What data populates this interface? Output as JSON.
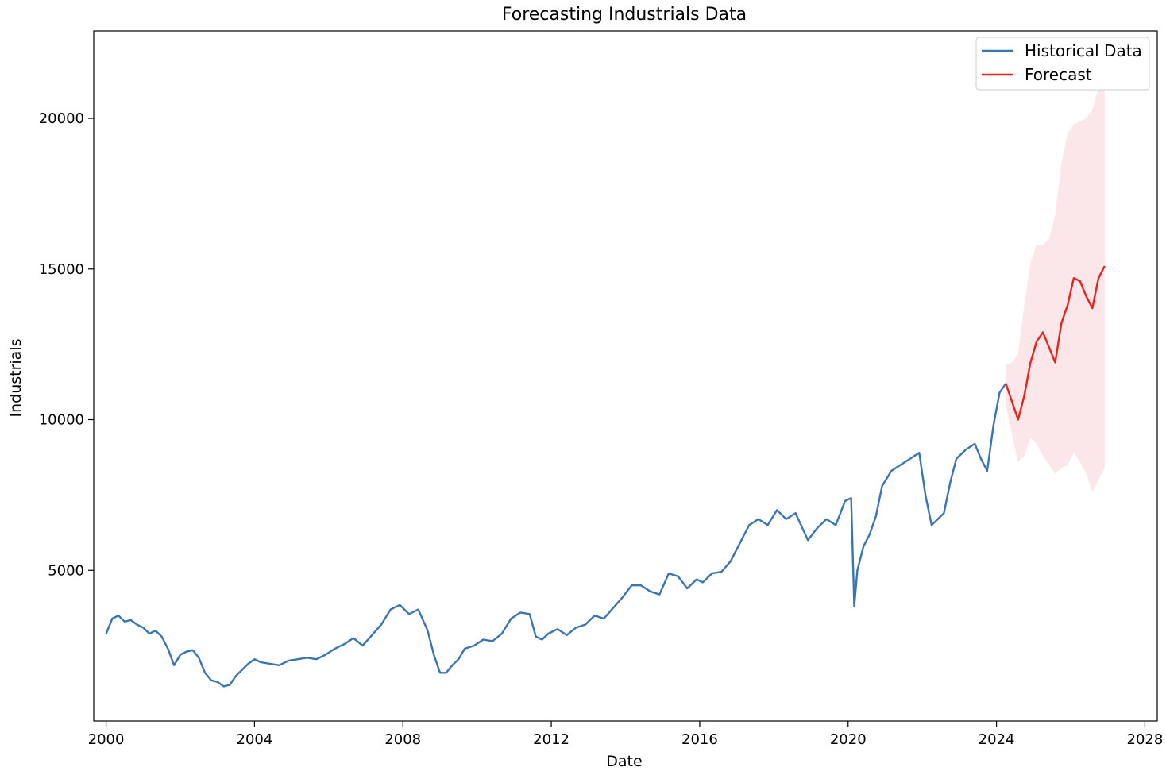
{
  "chart_data": {
    "type": "line",
    "title": "Forecasting Industrials Data",
    "xlabel": "Date",
    "ylabel": "Industrials",
    "xlim": [
      "1999-09-01",
      "2028-05-01"
    ],
    "ylim": [
      0,
      22900
    ],
    "x_ticks": [
      "2000",
      "2004",
      "2008",
      "2012",
      "2016",
      "2020",
      "2024",
      "2028"
    ],
    "y_ticks": [
      5000,
      10000,
      15000,
      20000
    ],
    "grid": false,
    "legend_position": "upper right",
    "series": [
      {
        "name": "Historical Data",
        "color": "#3a75b0",
        "x": [
          "2000-01",
          "2000-03",
          "2000-05",
          "2000-07",
          "2000-09",
          "2000-11",
          "2001-01",
          "2001-03",
          "2001-05",
          "2001-07",
          "2001-09",
          "2001-11",
          "2002-01",
          "2002-03",
          "2002-05",
          "2002-07",
          "2002-09",
          "2002-11",
          "2003-01",
          "2003-03",
          "2003-05",
          "2003-07",
          "2003-09",
          "2003-11",
          "2004-01",
          "2004-03",
          "2004-06",
          "2004-09",
          "2004-12",
          "2005-03",
          "2005-06",
          "2005-09",
          "2005-12",
          "2006-03",
          "2006-06",
          "2006-09",
          "2006-12",
          "2007-03",
          "2007-06",
          "2007-09",
          "2007-12",
          "2008-03",
          "2008-06",
          "2008-09",
          "2008-11",
          "2009-01",
          "2009-03",
          "2009-05",
          "2009-07",
          "2009-09",
          "2009-12",
          "2010-03",
          "2010-06",
          "2010-09",
          "2010-12",
          "2011-03",
          "2011-06",
          "2011-08",
          "2011-10",
          "2011-12",
          "2012-03",
          "2012-06",
          "2012-09",
          "2012-12",
          "2013-03",
          "2013-06",
          "2013-09",
          "2013-12",
          "2014-03",
          "2014-06",
          "2014-09",
          "2014-12",
          "2015-03",
          "2015-06",
          "2015-09",
          "2015-12",
          "2016-02",
          "2016-05",
          "2016-08",
          "2016-11",
          "2017-02",
          "2017-05",
          "2017-08",
          "2017-11",
          "2018-02",
          "2018-05",
          "2018-08",
          "2018-12",
          "2019-03",
          "2019-06",
          "2019-09",
          "2019-12",
          "2020-02",
          "2020-03",
          "2020-04",
          "2020-06",
          "2020-08",
          "2020-10",
          "2020-12",
          "2021-03",
          "2021-06",
          "2021-09",
          "2021-12",
          "2022-02",
          "2022-04",
          "2022-06",
          "2022-08",
          "2022-10",
          "2022-12",
          "2023-03",
          "2023-06",
          "2023-08",
          "2023-10",
          "2023-12",
          "2024-02",
          "2024-04"
        ],
        "y": [
          2900,
          3400,
          3500,
          3300,
          3350,
          3200,
          3100,
          2900,
          3000,
          2800,
          2400,
          1850,
          2200,
          2300,
          2350,
          2100,
          1600,
          1350,
          1300,
          1150,
          1200,
          1500,
          1700,
          1900,
          2050,
          1950,
          1900,
          1850,
          2000,
          2050,
          2100,
          2050,
          2200,
          2400,
          2550,
          2750,
          2500,
          2850,
          3200,
          3700,
          3850,
          3550,
          3700,
          3000,
          2200,
          1600,
          1600,
          1850,
          2050,
          2400,
          2500,
          2700,
          2650,
          2900,
          3400,
          3600,
          3550,
          2800,
          2700,
          2900,
          3050,
          2850,
          3100,
          3200,
          3500,
          3400,
          3750,
          4100,
          4500,
          4500,
          4300,
          4200,
          4900,
          4800,
          4400,
          4700,
          4600,
          4900,
          4950,
          5300,
          5900,
          6500,
          6700,
          6500,
          7000,
          6700,
          6900,
          6000,
          6400,
          6700,
          6500,
          7300,
          7400,
          3800,
          5000,
          5800,
          6200,
          6800,
          7800,
          8300,
          8500,
          8700,
          8900,
          7500,
          6500,
          6700,
          6900,
          7900,
          8700,
          9000,
          9200,
          8700,
          8300,
          9800,
          10900,
          11200
        ]
      },
      {
        "name": "Forecast",
        "color": "#e2261d",
        "x": [
          "2024-04",
          "2024-06",
          "2024-08",
          "2024-10",
          "2024-12",
          "2025-02",
          "2025-04",
          "2025-06",
          "2025-08",
          "2025-10",
          "2025-12",
          "2026-02",
          "2026-04",
          "2026-06",
          "2026-08",
          "2026-10",
          "2026-12"
        ],
        "y": [
          11200,
          10600,
          10000,
          10800,
          11900,
          12600,
          12900,
          12400,
          11900,
          13200,
          13800,
          14700,
          14600,
          14100,
          13700,
          14700,
          15100
        ],
        "band_lower": [
          10500,
          9500,
          8600,
          8800,
          9400,
          9200,
          8800,
          8500,
          8200,
          8400,
          8500,
          8900,
          8600,
          8200,
          7600,
          8000,
          8400
        ],
        "band_upper": [
          11800,
          11900,
          12200,
          13800,
          15200,
          15800,
          15800,
          16000,
          16800,
          18500,
          19500,
          19800,
          19900,
          20000,
          20300,
          21000,
          21500
        ]
      }
    ]
  }
}
